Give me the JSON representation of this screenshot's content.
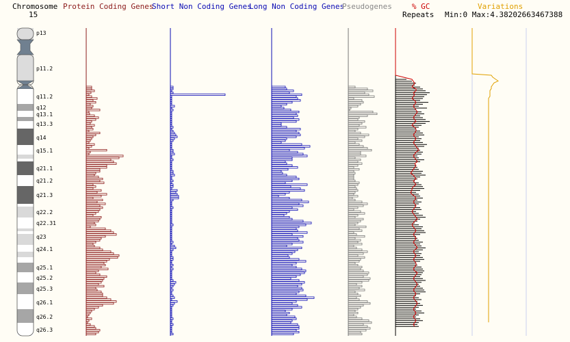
{
  "header": {
    "chromosome_label": "Chromosome",
    "chromosome_number": "15",
    "protein_coding": "Protein Coding Genes",
    "short_non_coding": "Short Non Coding Genes",
    "long_non_coding": "Long Non Coding Genes",
    "pseudogenes": "Pseudogenes",
    "gc": "% GC",
    "repeats": "Repeats",
    "variations": "Variations",
    "min_max": "Min:0 Max:4.38202663467388"
  },
  "colors": {
    "background": "#fffdf5",
    "protein_coding": "#8b1a1a",
    "short_non_coding": "#0a0ab4",
    "long_non_coding": "#0a0ab4",
    "pseudogenes": "#777777",
    "gc": "#cc0000",
    "repeats": "#000000",
    "variations": "#e0a000"
  },
  "chart_data": {
    "type": "bar",
    "chromosome": "15",
    "bands": [
      {
        "name": "p13",
        "stain": "acen-p"
      },
      {
        "name": "p12",
        "stain": "stalk"
      },
      {
        "name": "p11.2",
        "stain": "gvar"
      },
      {
        "name": "p11.1",
        "stain": "acen"
      },
      {
        "name": "q11.1",
        "stain": "acen"
      },
      {
        "name": "q11.2",
        "stain": "gneg"
      },
      {
        "name": "q12",
        "stain": "gpos50"
      },
      {
        "name": "q13.1",
        "stain": "gneg"
      },
      {
        "name": "q13.2",
        "stain": "gpos50"
      },
      {
        "name": "q13.3",
        "stain": "gneg"
      },
      {
        "name": "q14",
        "stain": "gpos75"
      },
      {
        "name": "q15.1",
        "stain": "gneg"
      },
      {
        "name": "q15.2",
        "stain": "gpos25"
      },
      {
        "name": "q15.3",
        "stain": "gneg"
      },
      {
        "name": "q21.1",
        "stain": "gpos75"
      },
      {
        "name": "q21.2",
        "stain": "gneg"
      },
      {
        "name": "q21.3",
        "stain": "gpos75"
      },
      {
        "name": "q22.1",
        "stain": "gneg"
      },
      {
        "name": "q22.2",
        "stain": "gpos25"
      },
      {
        "name": "q22.31",
        "stain": "gneg"
      },
      {
        "name": "q22.32",
        "stain": "gpos25"
      },
      {
        "name": "q22.33",
        "stain": "gneg"
      },
      {
        "name": "q23",
        "stain": "gpos25"
      },
      {
        "name": "q24.1",
        "stain": "gneg"
      },
      {
        "name": "q24.2",
        "stain": "gpos25"
      },
      {
        "name": "q24.3",
        "stain": "gneg"
      },
      {
        "name": "q25.1",
        "stain": "gpos50"
      },
      {
        "name": "q25.2",
        "stain": "gneg"
      },
      {
        "name": "q25.3",
        "stain": "gpos50"
      },
      {
        "name": "q26.1",
        "stain": "gneg"
      },
      {
        "name": "q26.2",
        "stain": "gpos50"
      },
      {
        "name": "q26.3",
        "stain": "gneg"
      }
    ],
    "band_labels": [
      "p13",
      "p11.2",
      "q11.2",
      "q12",
      "q13.1",
      "q13.3",
      "q14",
      "q15.1",
      "q21.1",
      "q21.2",
      "q21.3",
      "q22.2",
      "q22.31",
      "q23",
      "q24.1",
      "q25.1",
      "q25.2",
      "q25.3",
      "q26.1",
      "q26.2",
      "q26.3"
    ],
    "bins_start": 20,
    "protein_coding": [
      8,
      8,
      12,
      7,
      4,
      8,
      16,
      10,
      14,
      6,
      10,
      8,
      20,
      4,
      5,
      12,
      18,
      14,
      8,
      6,
      12,
      8,
      10,
      4,
      20,
      14,
      10,
      8,
      6,
      4,
      12,
      8,
      4,
      30,
      6,
      4,
      54,
      48,
      36,
      40,
      44,
      30,
      30,
      20,
      20,
      14,
      12,
      18,
      24,
      20,
      26,
      10,
      14,
      10,
      22,
      16,
      30,
      22,
      10,
      24,
      16,
      28,
      20,
      24,
      20,
      18,
      14,
      10,
      22,
      20,
      18,
      12,
      14,
      6,
      28,
      36,
      40,
      44,
      28,
      22,
      20,
      14,
      10,
      12,
      20,
      24,
      36,
      40,
      48,
      46,
      34,
      30,
      26,
      28,
      22,
      32,
      18,
      14,
      20,
      30,
      26,
      24,
      22,
      18,
      26,
      14,
      16,
      22,
      24,
      24,
      30,
      36,
      44,
      40,
      24,
      18,
      12,
      8,
      6,
      4,
      2,
      8,
      4,
      2,
      6,
      12,
      14,
      20,
      18,
      14
    ],
    "short_non_coding": [
      4,
      4,
      2,
      4,
      80,
      2,
      2,
      2,
      2,
      2,
      6,
      2,
      4,
      2,
      2,
      2,
      2,
      2,
      2,
      2,
      2,
      4,
      2,
      4,
      6,
      8,
      10,
      6,
      4,
      2,
      2,
      2,
      2,
      4,
      4,
      6,
      2,
      2,
      4,
      2,
      2,
      2,
      2,
      2,
      4,
      4,
      6,
      2,
      2,
      4,
      2,
      4,
      4,
      2,
      10,
      8,
      10,
      12,
      12,
      4,
      2,
      2,
      2,
      4,
      2,
      2,
      2,
      2,
      2,
      2,
      2,
      2,
      4,
      2,
      2,
      2,
      2,
      2,
      2,
      2,
      2,
      4,
      2,
      6,
      8,
      4,
      2,
      2,
      2,
      4,
      4,
      2,
      2,
      4,
      2,
      4,
      2,
      2,
      2,
      2,
      2,
      4,
      8,
      6,
      4,
      2,
      4,
      2,
      2,
      4,
      6,
      2,
      10,
      6,
      4,
      2,
      2,
      2,
      2,
      2,
      2,
      4,
      2,
      2,
      4,
      2,
      2,
      2,
      2,
      4
    ],
    "long_non_coding": [
      20,
      22,
      32,
      26,
      44,
      36,
      38,
      42,
      30,
      22,
      14,
      18,
      28,
      40,
      36,
      38,
      32,
      40,
      36,
      14,
      14,
      22,
      42,
      36,
      40,
      42,
      36,
      22,
      20,
      14,
      44,
      56,
      48,
      26,
      38,
      46,
      52,
      30,
      30,
      20,
      22,
      30,
      38,
      24,
      14,
      16,
      22,
      36,
      40,
      30,
      20,
      52,
      28,
      42,
      48,
      26,
      20,
      10,
      26,
      44,
      54,
      40,
      46,
      30,
      38,
      26,
      22,
      18,
      26,
      30,
      46,
      58,
      50,
      40,
      36,
      38,
      52,
      30,
      46,
      38,
      40,
      46,
      30,
      22,
      44,
      38,
      34,
      30,
      24,
      26,
      40,
      50,
      36,
      30,
      36,
      44,
      50,
      48,
      42,
      36,
      28,
      40,
      48,
      44,
      38,
      44,
      46,
      40,
      36,
      50,
      62,
      52,
      36,
      30,
      38,
      44,
      30,
      20,
      26,
      22,
      34,
      36,
      30,
      28,
      38,
      40,
      40,
      36,
      40,
      32
    ],
    "pseudogenes": [
      10,
      28,
      36,
      24,
      30,
      38,
      8,
      20,
      22,
      18,
      14,
      4,
      2,
      36,
      42,
      28,
      16,
      14,
      24,
      20,
      16,
      26,
      14,
      10,
      18,
      30,
      24,
      14,
      20,
      10,
      16,
      22,
      28,
      34,
      18,
      18,
      26,
      10,
      18,
      14,
      20,
      14,
      8,
      16,
      8,
      10,
      8,
      8,
      8,
      10,
      16,
      14,
      10,
      12,
      14,
      10,
      8,
      14,
      6,
      10,
      20,
      28,
      22,
      14,
      8,
      18,
      24,
      14,
      10,
      22,
      18,
      14,
      10,
      26,
      16,
      20,
      8,
      12,
      24,
      10,
      18,
      14,
      20,
      8,
      12,
      20,
      28,
      22,
      14,
      24,
      18,
      16,
      10,
      14,
      20,
      18,
      22,
      30,
      28,
      22,
      32,
      30,
      20,
      12,
      20,
      16,
      24,
      10,
      14,
      18,
      12,
      16,
      28,
      32,
      22,
      18,
      14,
      10,
      14,
      8,
      12,
      20,
      30,
      34,
      22,
      28,
      32,
      26,
      18,
      20
    ],
    "repeats": [
      16,
      24,
      30,
      28,
      36,
      40,
      44,
      50,
      46,
      42,
      40,
      36,
      48,
      40,
      34,
      46,
      30,
      38,
      42,
      36,
      40,
      44,
      50,
      44,
      38,
      34,
      30,
      36,
      40,
      42,
      34,
      38,
      36,
      40,
      46,
      42,
      34,
      36,
      40,
      38,
      32,
      34,
      42,
      36,
      28,
      30,
      32,
      34,
      40,
      38,
      44,
      36,
      32,
      28,
      34,
      38,
      40,
      42,
      36,
      30,
      34,
      36,
      40,
      32,
      38,
      34,
      30,
      36,
      38,
      30,
      34,
      40,
      44,
      36,
      32,
      28,
      34,
      40,
      38,
      42,
      44,
      36,
      30,
      32,
      34,
      40,
      36,
      38,
      44,
      40,
      34,
      38,
      36,
      40,
      42,
      36,
      30,
      32,
      38,
      40,
      42,
      40,
      38,
      36,
      40,
      44,
      38,
      34,
      36,
      40,
      42,
      44,
      36,
      30,
      34,
      38,
      32,
      36,
      40,
      34,
      30,
      38,
      42,
      34,
      30,
      36,
      40,
      34,
      32,
      34
    ],
    "gc": [
      24,
      26,
      28,
      26,
      24,
      30,
      30,
      26,
      28,
      26,
      24,
      28,
      30,
      28,
      26,
      28,
      30,
      32,
      30,
      28,
      26,
      28,
      30,
      26,
      24,
      28,
      30,
      30,
      28,
      26,
      28,
      30,
      28,
      26,
      28,
      30,
      32,
      34,
      30,
      28,
      26,
      28,
      30,
      32,
      28,
      30,
      28,
      26,
      24,
      22,
      26,
      28,
      30,
      26,
      28,
      30,
      26,
      24,
      24,
      22,
      24,
      28,
      30,
      28,
      26,
      28,
      30,
      28,
      26,
      24,
      26,
      28,
      30,
      32,
      28,
      26,
      24,
      26,
      28,
      30,
      28,
      26,
      28,
      30,
      28,
      26,
      28,
      30,
      32,
      28,
      26,
      28,
      30,
      28,
      26,
      28,
      30,
      30,
      28,
      26,
      28,
      32,
      30,
      28,
      26,
      28,
      30,
      32,
      30,
      28,
      26,
      28,
      30,
      28,
      26,
      28,
      30,
      32,
      30,
      28,
      26,
      28,
      30,
      28,
      26,
      28,
      30,
      28,
      26,
      28
    ],
    "variations": [
      8,
      10,
      14,
      18,
      12,
      10,
      8,
      8,
      6,
      6,
      6,
      6,
      4,
      4,
      4,
      4,
      4,
      4,
      4,
      4,
      4,
      4,
      4,
      4,
      4,
      4,
      4,
      4,
      4,
      4,
      4,
      4,
      4,
      4,
      4,
      4,
      4,
      4,
      4,
      4,
      4,
      4,
      4,
      4,
      4,
      4,
      4,
      4,
      4,
      4,
      4,
      4,
      4,
      4,
      4,
      4,
      4,
      4,
      4,
      4,
      4,
      4,
      4,
      4,
      4,
      4,
      4,
      4,
      4,
      4,
      4,
      4,
      4,
      4,
      4,
      4,
      4,
      4,
      4,
      4,
      4,
      4,
      4,
      4,
      4,
      4,
      4,
      4,
      4,
      4,
      4,
      4,
      4,
      4,
      4,
      4,
      4,
      4,
      4,
      4,
      4,
      4,
      4,
      4,
      4,
      4,
      4,
      4,
      4,
      4,
      4,
      4,
      4,
      4,
      4,
      4,
      4,
      4,
      4,
      4,
      4,
      4,
      4,
      4,
      4,
      4,
      4,
      4,
      4,
      4
    ]
  }
}
